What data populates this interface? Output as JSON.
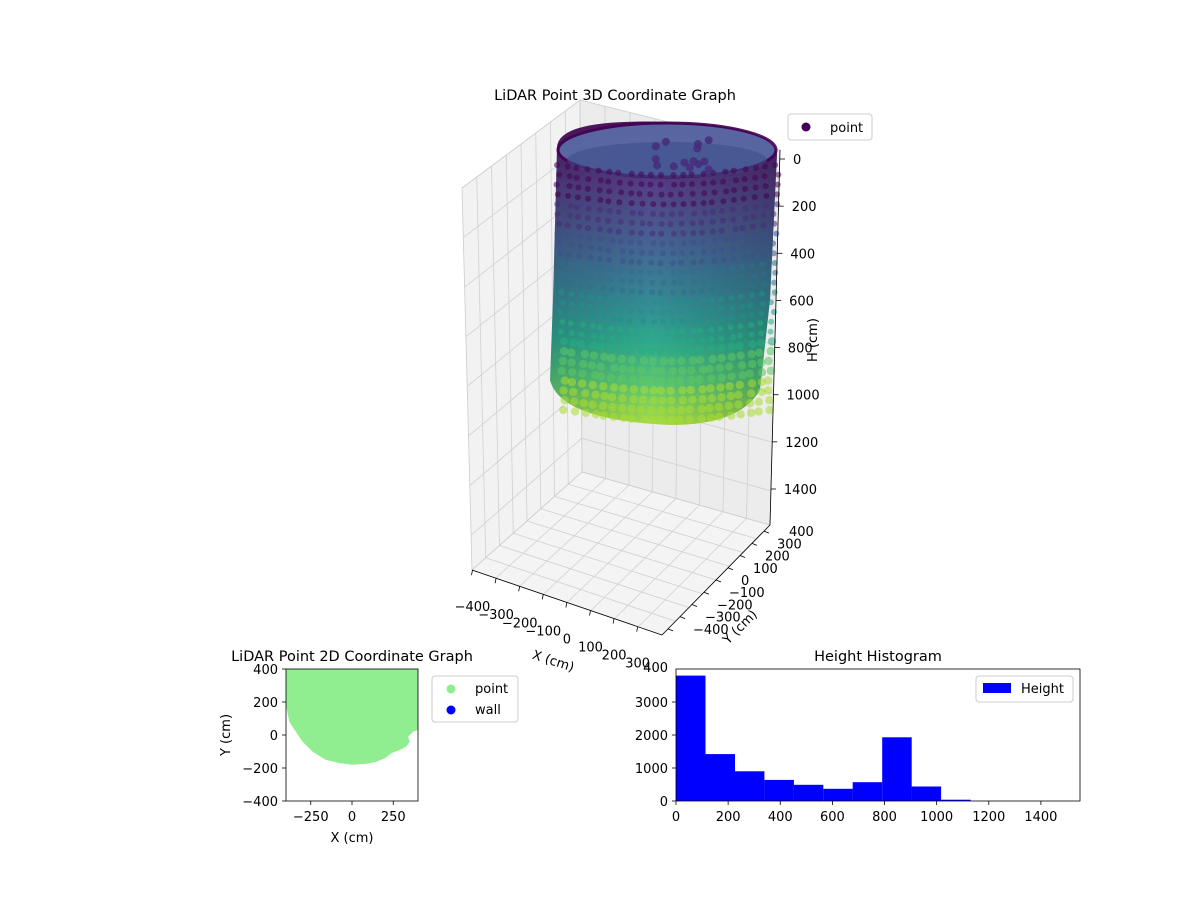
{
  "chart_data": [
    {
      "type": "scatter",
      "projection": "3d",
      "title": "LiDAR Point 3D Coordinate Graph",
      "xlabel": "X (cm)",
      "ylabel": "Y (cm)",
      "zlabel": "H (cm)",
      "xticks": [
        "−400",
        "−300",
        "−200",
        "−100",
        "0",
        "100",
        "200",
        "300"
      ],
      "yticks": [
        "−400",
        "−300",
        "−200",
        "−100",
        "0",
        "100",
        "200",
        "300",
        "400"
      ],
      "zticks": [
        "0",
        "200",
        "400",
        "600",
        "800",
        "1000",
        "1200",
        "1400"
      ],
      "xlim": [
        -400,
        400
      ],
      "ylim": [
        -400,
        400
      ],
      "zlim": [
        0,
        1500
      ],
      "z_inverted": true,
      "colormap": "viridis",
      "legend": [
        {
          "label": "point",
          "color": "#440154"
        }
      ],
      "legend_position": "outside top-right",
      "shape": "cylindrical wall",
      "radius_cm": 300,
      "height_range": [
        0,
        1000
      ],
      "series": [
        {
          "name": "point"
        }
      ]
    },
    {
      "type": "scatter",
      "title": "LiDAR Point 2D Coordinate Graph",
      "xlabel": "X (cm)",
      "ylabel": "Y (cm)",
      "xticks": [
        "−250",
        "0",
        "250"
      ],
      "yticks": [
        "−400",
        "−200",
        "0",
        "200",
        "400"
      ],
      "xlim": [
        -400,
        400
      ],
      "ylim": [
        -400,
        400
      ],
      "legend": [
        {
          "label": "point",
          "color": "#90ee90"
        },
        {
          "label": "wall",
          "color": "#0000ff"
        }
      ],
      "legend_position": "outside right",
      "outline": [
        [
          -400,
          400
        ],
        [
          -400,
          180
        ],
        [
          -380,
          80
        ],
        [
          -340,
          20
        ],
        [
          -300,
          -40
        ],
        [
          -240,
          -100
        ],
        [
          -160,
          -150
        ],
        [
          -80,
          -170
        ],
        [
          0,
          -180
        ],
        [
          80,
          -175
        ],
        [
          140,
          -165
        ],
        [
          200,
          -140
        ],
        [
          240,
          -110
        ],
        [
          290,
          -90
        ],
        [
          330,
          -70
        ],
        [
          350,
          -40
        ],
        [
          340,
          -10
        ],
        [
          370,
          20
        ],
        [
          400,
          30
        ],
        [
          400,
          400
        ]
      ],
      "series": [
        {
          "name": "point"
        },
        {
          "name": "wall"
        }
      ]
    },
    {
      "type": "bar",
      "histogram": true,
      "title": "Height Histogram",
      "xlim": [
        0,
        1550
      ],
      "ylim": [
        0,
        4000
      ],
      "xticks": [
        "0",
        "200",
        "400",
        "600",
        "800",
        "1000",
        "1200",
        "1400"
      ],
      "yticks": [
        "0",
        "1000",
        "2000",
        "3000"
      ],
      "ytick_partial": "400",
      "bins": [
        {
          "x0": 0,
          "x1": 113,
          "count": 3800
        },
        {
          "x0": 113,
          "x1": 226,
          "count": 1420
        },
        {
          "x0": 226,
          "x1": 339,
          "count": 900
        },
        {
          "x0": 339,
          "x1": 452,
          "count": 640
        },
        {
          "x0": 452,
          "x1": 565,
          "count": 490
        },
        {
          "x0": 565,
          "x1": 678,
          "count": 370
        },
        {
          "x0": 678,
          "x1": 791,
          "count": 570
        },
        {
          "x0": 791,
          "x1": 904,
          "count": 1930
        },
        {
          "x0": 904,
          "x1": 1017,
          "count": 440
        },
        {
          "x0": 1017,
          "x1": 1130,
          "count": 40
        }
      ],
      "color": "#0000ff",
      "legend": [
        {
          "label": "Height",
          "color": "#0000ff"
        }
      ],
      "legend_position": "top-right",
      "series": [
        {
          "name": "Height"
        }
      ]
    }
  ]
}
